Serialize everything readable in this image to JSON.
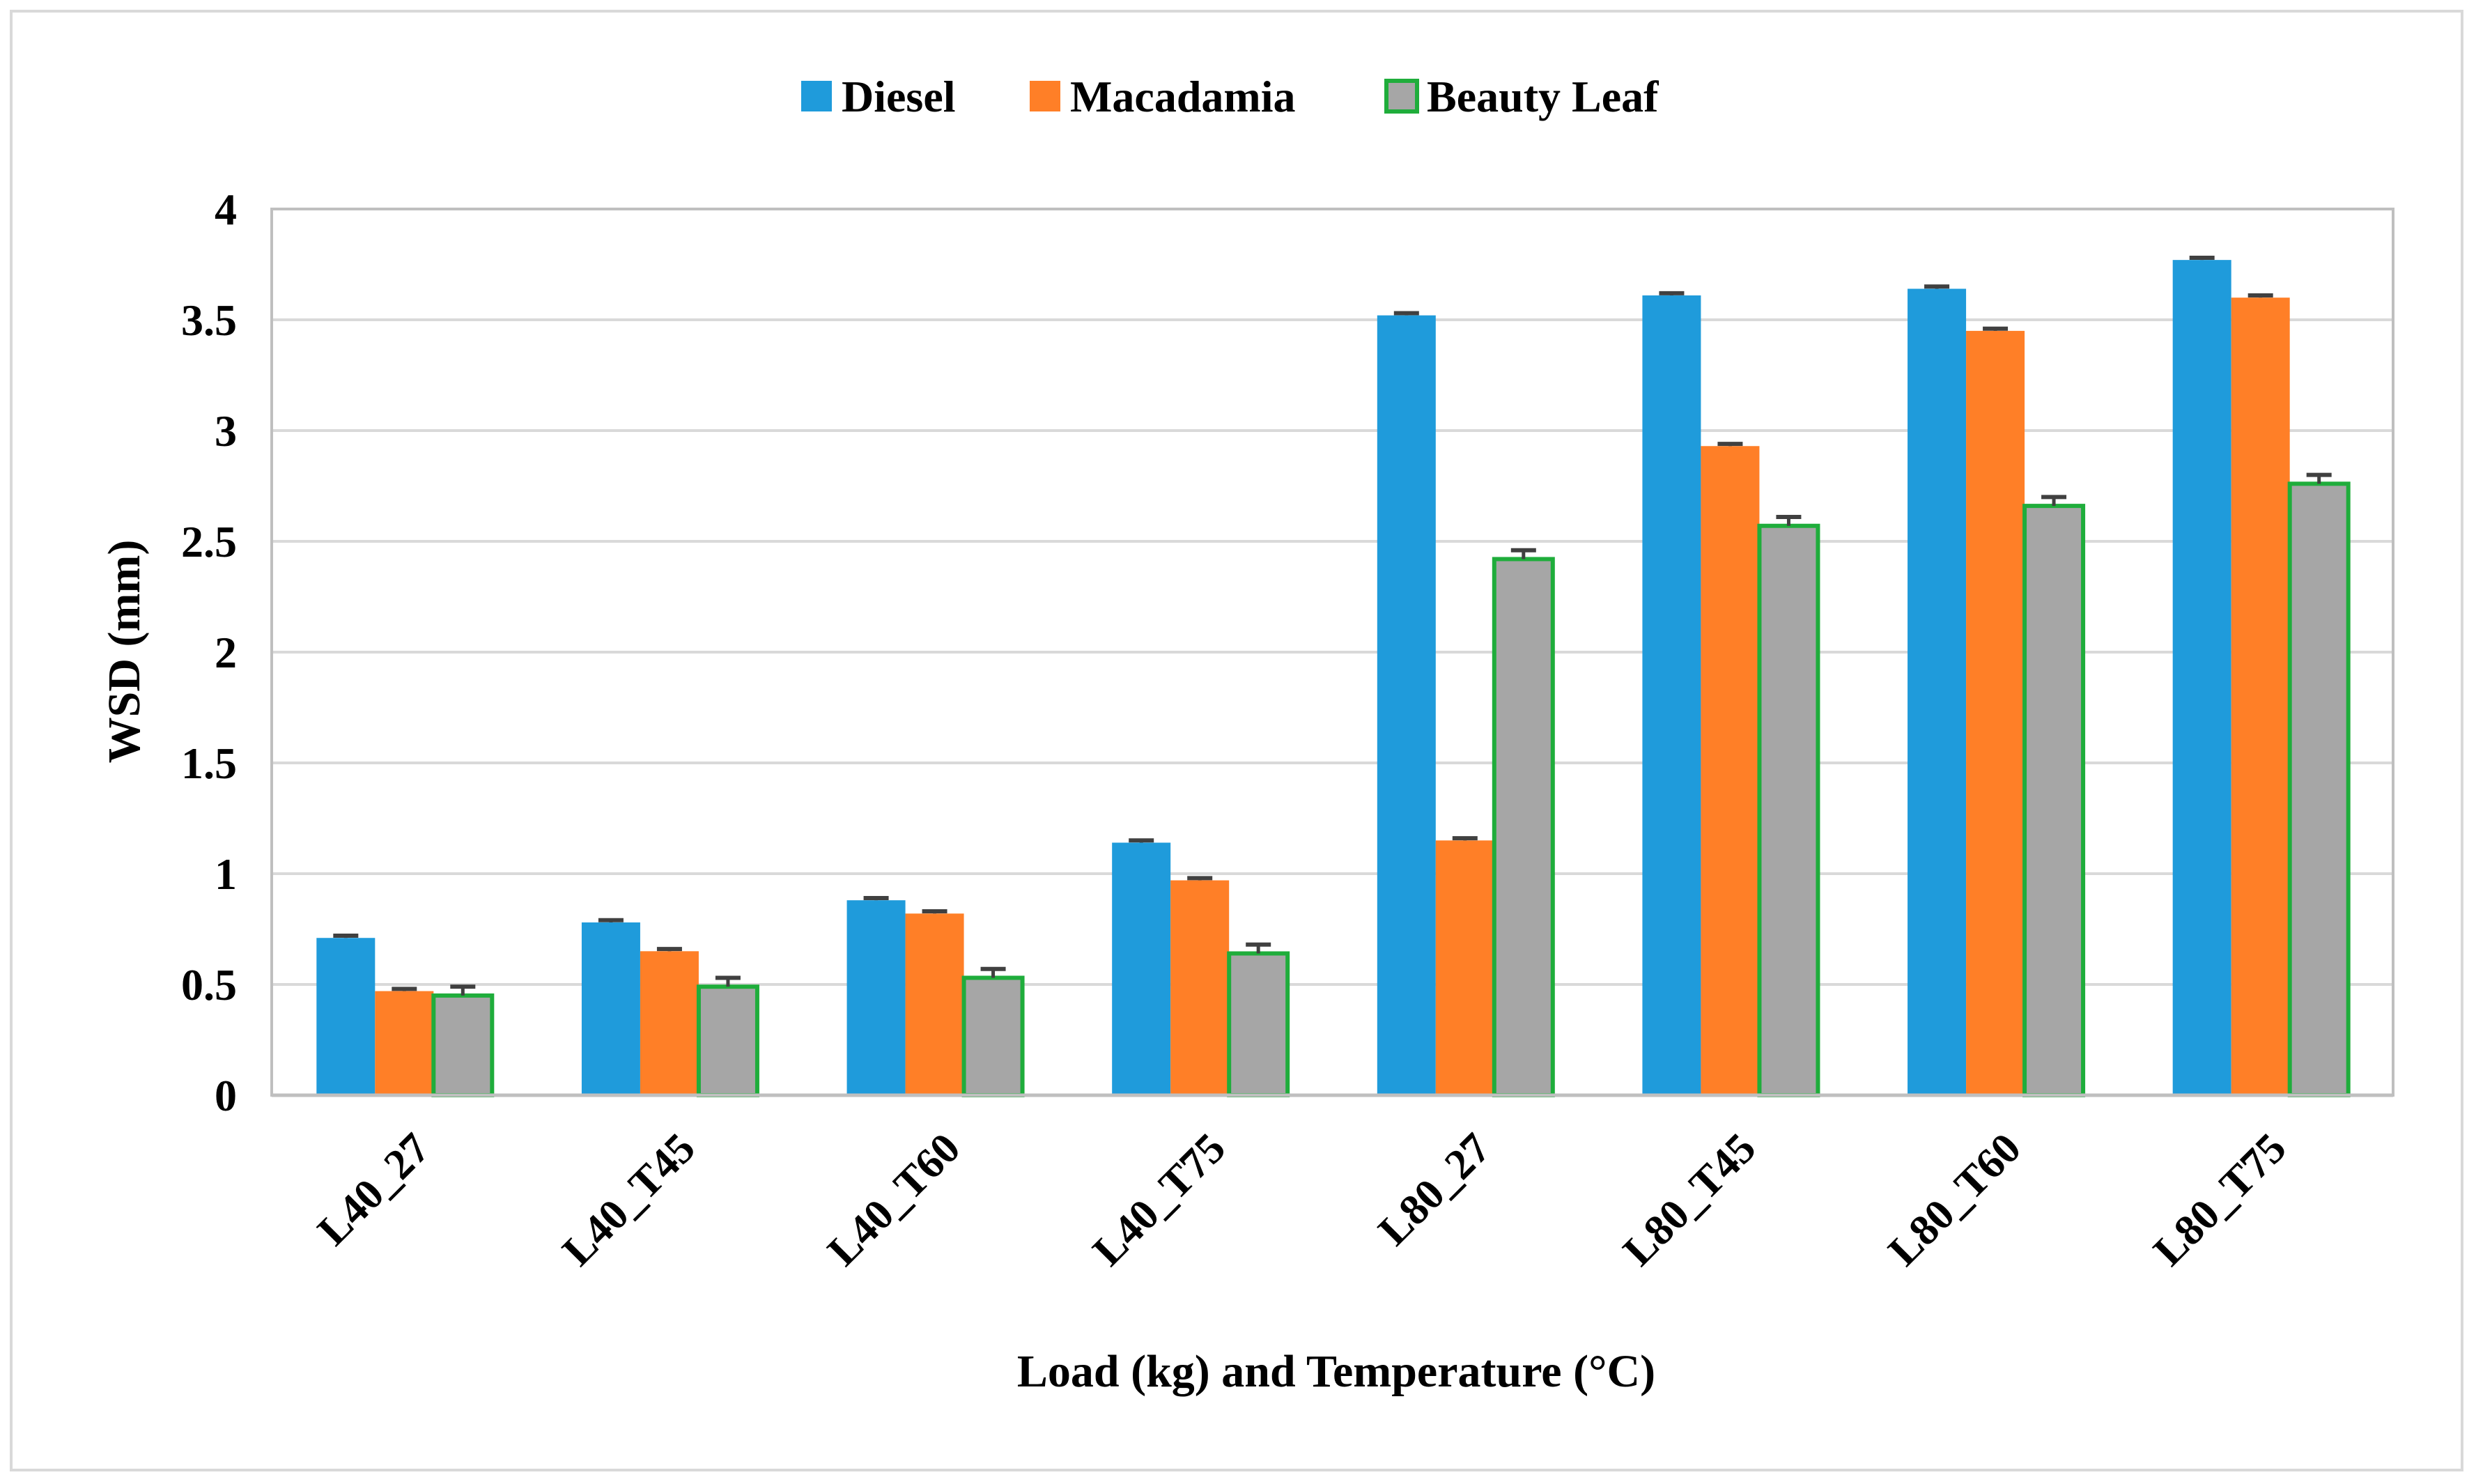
{
  "chart_data": {
    "type": "bar",
    "title": "",
    "xlabel": "Load (kg) and Temperature (°C)",
    "ylabel": "WSD (mm)",
    "ylim": [
      0,
      4
    ],
    "yticks": [
      0,
      0.5,
      1,
      1.5,
      2,
      2.5,
      3,
      3.5,
      4
    ],
    "ytick_labels": [
      "0",
      "0.5",
      "1",
      "1.5",
      "2",
      "2.5",
      "3",
      "3.5",
      "4"
    ],
    "grid": true,
    "legend_position": "top-center",
    "categories": [
      "L40_27",
      "L40_T45",
      "L40_T60",
      "L40_T75",
      "L80_27",
      "L80_T45",
      "L80_T60",
      "L80_T75"
    ],
    "series": [
      {
        "name": "Diesel",
        "color": "#1f9bdb",
        "values": [
          0.71,
          0.78,
          0.88,
          1.14,
          3.52,
          3.61,
          3.64,
          3.77
        ],
        "errors": [
          0.01,
          0.01,
          0.01,
          0.01,
          0.01,
          0.01,
          0.01,
          0.01
        ]
      },
      {
        "name": "Macadamia",
        "color": "#ff7f27",
        "values": [
          0.47,
          0.65,
          0.82,
          0.97,
          1.15,
          2.93,
          3.45,
          3.6
        ],
        "errors": [
          0.01,
          0.01,
          0.01,
          0.01,
          0.01,
          0.01,
          0.01,
          0.01
        ]
      },
      {
        "name": "Beauty Leaf",
        "color": "#a6a6a6",
        "edge_color": "#1fad3b",
        "values": [
          0.45,
          0.49,
          0.53,
          0.64,
          2.42,
          2.57,
          2.66,
          2.76
        ],
        "errors": [
          0.04,
          0.04,
          0.04,
          0.04,
          0.04,
          0.04,
          0.04,
          0.04
        ]
      }
    ],
    "error_bar_color": "#404040",
    "gridline_color": "#d9d9d9",
    "axis_color": "#bfbfbf"
  }
}
